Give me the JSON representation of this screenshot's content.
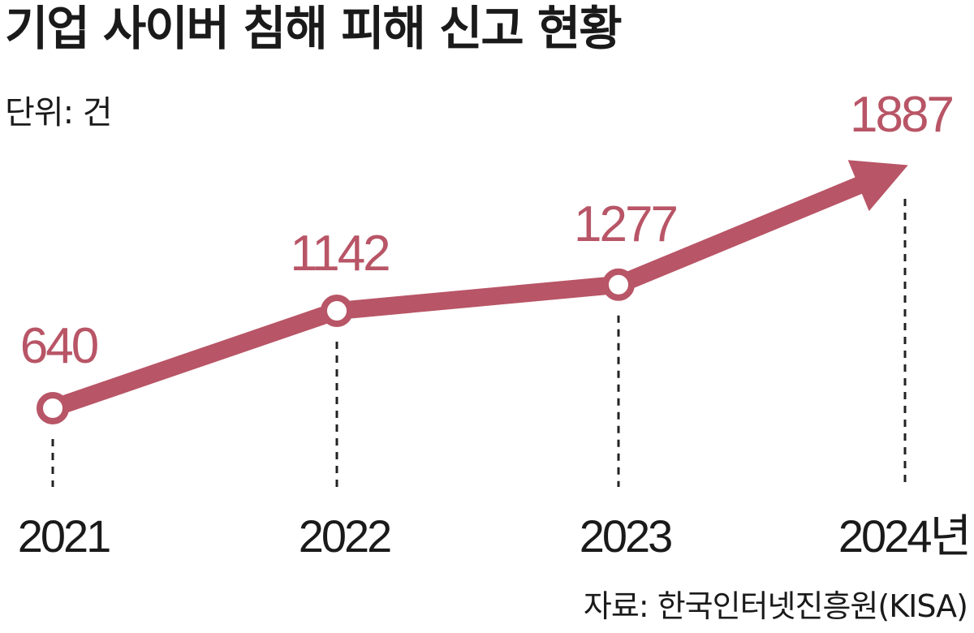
{
  "title": "기업 사이버 침해 피해 신고 현황",
  "unit_label": "단위: 건",
  "source": "자료: 한국인터넷진흥원(KISA)",
  "colors": {
    "series": "#b85566",
    "text": "#1a1a1a",
    "marker_fill": "#ffffff"
  },
  "chart_data": {
    "type": "line",
    "title": "기업 사이버 침해 피해 신고 현황",
    "unit": "건",
    "categories": [
      "2021",
      "2022",
      "2023",
      "2024년"
    ],
    "values": [
      640,
      1142,
      1277,
      1887
    ],
    "data_labels": [
      "640",
      "1142",
      "1277",
      "1887"
    ],
    "last_point": "arrowhead",
    "grid": false,
    "legend": "none"
  }
}
